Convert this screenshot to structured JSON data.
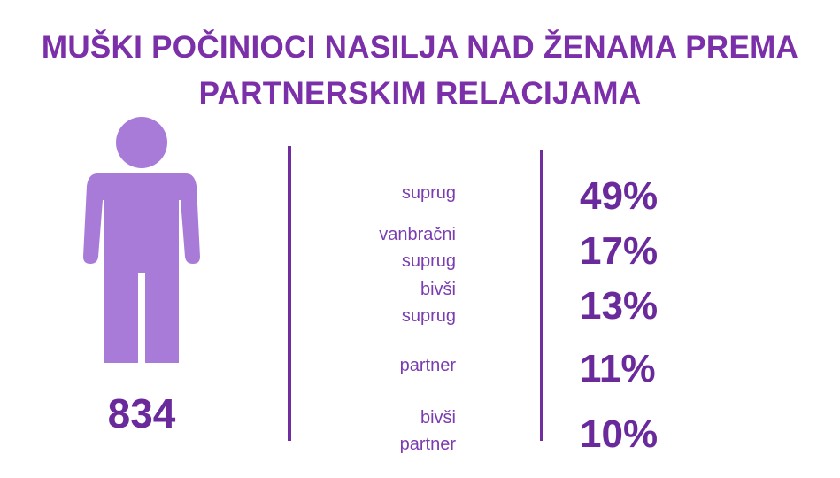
{
  "header": {
    "title": [
      "MUŠKI POČINIOCI NASILJA NAD ŽENAMA PREMA",
      "PARTNERSKIM RELACIJAMA"
    ]
  },
  "total": "834",
  "rows": [
    {
      "label": "suprug",
      "value": "49%"
    },
    {
      "label": "vanbračni\nsuprug",
      "value": "17%"
    },
    {
      "label": "bivši\nsuprug",
      "value": "13%"
    },
    {
      "label": "partner",
      "value": "11%"
    },
    {
      "label": "bivši\npartner",
      "value": "10%"
    }
  ]
}
